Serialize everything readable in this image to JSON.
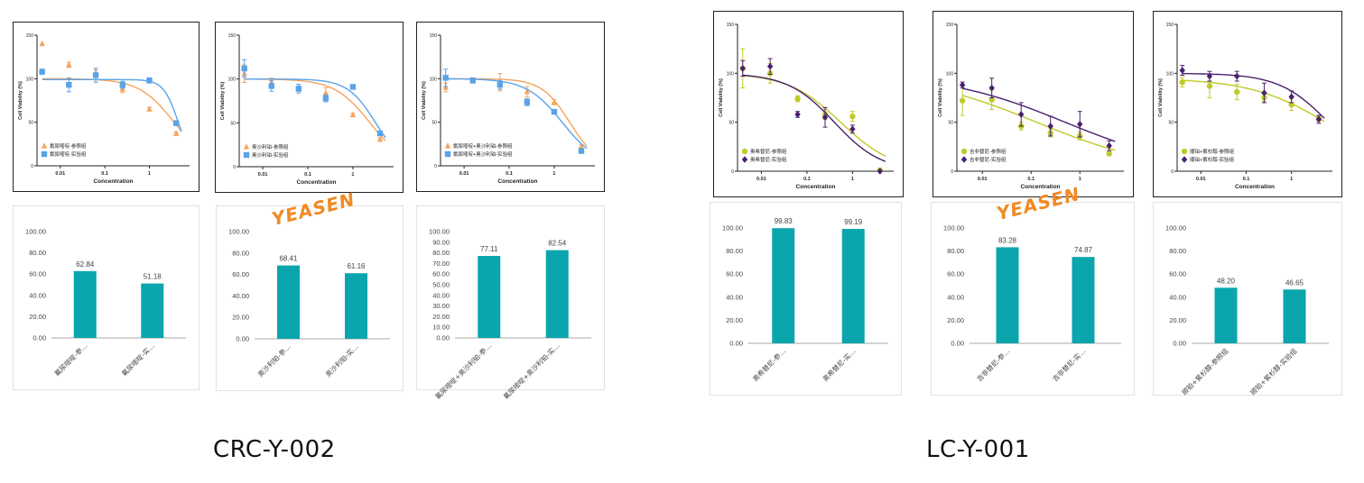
{
  "logo": "YEASEN",
  "groups": [
    "CRC-Y-002",
    "LC-Y-001"
  ],
  "dr_common": {
    "xlabel": "Concentration",
    "ylabel": "Cell Viability (%)"
  },
  "colors": {
    "orange": "#f7a35c",
    "blue": "#5aa3e8",
    "olive": "#bfca28",
    "purple": "#4b1f6f",
    "teal": "#0aa5ad"
  },
  "chart_data": [
    {
      "type": "scatter",
      "group": "CRC-Y-002",
      "xscale": "log",
      "xlim": [
        0.003,
        8
      ],
      "ylim": [
        0,
        150
      ],
      "xticks": [
        "0.01",
        "0.1",
        "1"
      ],
      "yticks": [
        "0",
        "50",
        "100",
        "150"
      ],
      "xlabel": "Concentration",
      "ylabel": "Cell Viability (%)",
      "series": [
        {
          "name": "氟尿嘧啶-参照组",
          "color": "orange",
          "marker": "triangle",
          "fit": {
            "top": 100,
            "bottom": 0,
            "ic50": 3.6,
            "hill": 1.1
          },
          "points": [
            [
              0.0039,
              140,
              0
            ],
            [
              0.0156,
              116,
              3
            ],
            [
              0.0625,
              106,
              4
            ],
            [
              0.25,
              88,
              4
            ],
            [
              1,
              65,
              2
            ],
            [
              4,
              37,
              2
            ]
          ]
        },
        {
          "name": "氟尿嘧啶-实验组",
          "color": "blue",
          "marker": "square",
          "fit": {
            "top": 99,
            "bottom": 0,
            "ic50": 4.5,
            "hill": 2.6
          },
          "points": [
            [
              0.0039,
              108,
              3
            ],
            [
              0.0156,
              93,
              8
            ],
            [
              0.0625,
              104,
              8
            ],
            [
              0.25,
              93,
              4
            ],
            [
              1,
              98,
              3
            ],
            [
              4,
              49,
              2
            ]
          ]
        }
      ]
    },
    {
      "type": "scatter",
      "group": "CRC-Y-002",
      "xscale": "log",
      "xlim": [
        0.003,
        8
      ],
      "ylim": [
        0,
        150
      ],
      "xticks": [
        "0.01",
        "0.1",
        "1"
      ],
      "yticks": [
        "0",
        "50",
        "100",
        "150"
      ],
      "xlabel": "Concentration",
      "ylabel": "Cell Viability (%)",
      "series": [
        {
          "name": "奥沙利铂-参照组",
          "color": "orange",
          "marker": "triangle",
          "fit": {
            "top": 100,
            "bottom": 0,
            "ic50": 2.4,
            "hill": 1.1
          },
          "points": [
            [
              0.0039,
              106,
              10
            ],
            [
              0.0156,
              96,
              5
            ],
            [
              0.0625,
              90,
              4
            ],
            [
              0.25,
              84,
              6
            ],
            [
              1,
              59,
              2
            ],
            [
              4,
              31,
              2
            ]
          ]
        },
        {
          "name": "奥沙利铂-实验组",
          "color": "blue",
          "marker": "square",
          "fit": {
            "top": 100,
            "bottom": 0,
            "ic50": 3.2,
            "hill": 1.4
          },
          "points": [
            [
              0.0039,
              112,
              10
            ],
            [
              0.0156,
              92,
              6
            ],
            [
              0.0625,
              89,
              5
            ],
            [
              0.25,
              78,
              4
            ],
            [
              1,
              91,
              2
            ],
            [
              4,
              38,
              2
            ]
          ]
        }
      ]
    },
    {
      "type": "scatter",
      "group": "CRC-Y-002",
      "xscale": "log",
      "xlim": [
        0.003,
        8
      ],
      "ylim": [
        0,
        150
      ],
      "xticks": [
        "0.01",
        "0.1",
        "1"
      ],
      "yticks": [
        "0",
        "50",
        "100",
        "150"
      ],
      "xlabel": "Concentration",
      "ylabel": "Cell Viability (%)",
      "series": [
        {
          "name": "氟尿嘧啶+奥沙利铂-参照组",
          "color": "orange",
          "marker": "triangle",
          "fit": {
            "top": 100,
            "bottom": 0,
            "ic50": 2.2,
            "hill": 1.4
          },
          "points": [
            [
              0.0039,
              90,
              5
            ],
            [
              0.0156,
              98,
              3
            ],
            [
              0.0625,
              96,
              10
            ],
            [
              0.25,
              85,
              6
            ],
            [
              1,
              73,
              3
            ],
            [
              4,
              22,
              2
            ]
          ]
        },
        {
          "name": "氟尿嘧啶+奥沙利铂-实验组",
          "color": "blue",
          "marker": "square",
          "fit": {
            "top": 100,
            "bottom": 0,
            "ic50": 1.5,
            "hill": 1.1
          },
          "points": [
            [
              0.0039,
              101,
              10
            ],
            [
              0.0156,
              98,
              3
            ],
            [
              0.0625,
              93,
              5
            ],
            [
              0.25,
              73,
              4
            ],
            [
              1,
              62,
              2
            ],
            [
              4,
              17,
              2
            ]
          ]
        }
      ]
    },
    {
      "type": "scatter",
      "group": "LC-Y-001",
      "xscale": "log",
      "xlim": [
        0.003,
        8
      ],
      "ylim": [
        0,
        150
      ],
      "xticks": [
        "0.01",
        "0.1",
        "1"
      ],
      "yticks": [
        "0",
        "50",
        "100",
        "150"
      ],
      "xlabel": "Concentration",
      "ylabel": "Cell Viability (%)",
      "series": [
        {
          "name": "奥希替尼-参照组",
          "color": "olive",
          "marker": "circle",
          "fit": {
            "top": 100,
            "bottom": 0,
            "ic50": 0.55,
            "hill": 0.75
          },
          "points": [
            [
              0.0039,
              105,
              20
            ],
            [
              0.0156,
              100,
              10
            ],
            [
              0.0625,
              74,
              3
            ],
            [
              0.25,
              58,
              5
            ],
            [
              1,
              56,
              5
            ],
            [
              4,
              1,
              2
            ]
          ]
        },
        {
          "name": "奥希替尼-实验组",
          "color": "purple",
          "marker": "diamond",
          "fit": {
            "top": 100,
            "bottom": 0,
            "ic50": 0.4,
            "hill": 0.85
          },
          "points": [
            [
              0.0039,
              105,
              8
            ],
            [
              0.0156,
              107,
              8
            ],
            [
              0.0625,
              58,
              3
            ],
            [
              0.25,
              55,
              10
            ],
            [
              1,
              43,
              4
            ],
            [
              4,
              0,
              0
            ]
          ]
        }
      ]
    },
    {
      "type": "scatter",
      "group": "LC-Y-001",
      "xscale": "log",
      "xlim": [
        0.003,
        8
      ],
      "ylim": [
        0,
        150
      ],
      "xticks": [
        "0.01",
        "0.1",
        "1"
      ],
      "yticks": [
        "0",
        "50",
        "100",
        "150"
      ],
      "xlabel": "Concentration",
      "ylabel": "Cell Viability (%)",
      "series": [
        {
          "name": "吉非替尼-参照组",
          "color": "olive",
          "marker": "circle",
          "fit": {
            "top": 100,
            "bottom": 0,
            "ic50": 0.13,
            "hill": 0.35
          },
          "points": [
            [
              0.0039,
              72,
              15
            ],
            [
              0.0156,
              73,
              10
            ],
            [
              0.0625,
              46,
              4
            ],
            [
              0.25,
              39,
              4
            ],
            [
              1,
              36,
              4
            ],
            [
              4,
              18,
              2
            ]
          ]
        },
        {
          "name": "吉非替尼-实验组",
          "color": "purple",
          "marker": "diamond",
          "fit": {
            "top": 100,
            "bottom": 0,
            "ic50": 0.5,
            "hill": 0.35
          },
          "points": [
            [
              0.0039,
              88,
              3
            ],
            [
              0.0156,
              85,
              10
            ],
            [
              0.0625,
              58,
              12
            ],
            [
              0.25,
              46,
              10
            ],
            [
              1,
              48,
              13
            ],
            [
              4,
              26,
              5
            ]
          ]
        }
      ]
    },
    {
      "type": "scatter",
      "group": "LC-Y-001",
      "xscale": "log",
      "xlim": [
        0.003,
        8
      ],
      "ylim": [
        0,
        150
      ],
      "xticks": [
        "0.01",
        "0.1",
        "1"
      ],
      "yticks": [
        "0",
        "50",
        "100",
        "150"
      ],
      "xlabel": "Concentration",
      "ylabel": "Cell Viability (%)",
      "series": [
        {
          "name": "顺铂+紫杉醇-参照组",
          "color": "olive",
          "marker": "circle",
          "fit": {
            "top": 95,
            "bottom": 0,
            "ic50": 7,
            "hill": 0.5
          },
          "points": [
            [
              0.0039,
              91,
              5
            ],
            [
              0.0156,
              87,
              12
            ],
            [
              0.0625,
              81,
              8
            ],
            [
              0.25,
              75,
              4
            ],
            [
              1,
              68,
              6
            ],
            [
              4,
              54,
              3
            ]
          ]
        },
        {
          "name": "顺铂+紫杉醇-实验组",
          "color": "purple",
          "marker": "diamond",
          "fit": {
            "top": 100,
            "bottom": 0,
            "ic50": 6.5,
            "hill": 0.8
          },
          "points": [
            [
              0.0039,
              103,
              5
            ],
            [
              0.0156,
              97,
              5
            ],
            [
              0.0625,
              97,
              5
            ],
            [
              0.25,
              80,
              10
            ],
            [
              1,
              76,
              6
            ],
            [
              4,
              53,
              4
            ]
          ]
        }
      ]
    },
    {
      "type": "bar",
      "group": "CRC-Y-002",
      "categories": [
        "氟尿嘧啶-参…",
        "氟尿嘧啶-实…"
      ],
      "values": [
        62.84,
        51.18
      ],
      "labels": [
        "62.84",
        "51.18"
      ],
      "ylim": [
        0,
        100
      ],
      "yticks": [
        "0.00",
        "20.00",
        "40.00",
        "60.00",
        "80.00",
        "100.00"
      ]
    },
    {
      "type": "bar",
      "group": "CRC-Y-002",
      "categories": [
        "奥沙利铂-参…",
        "奥沙利铂-实…"
      ],
      "values": [
        68.41,
        61.16
      ],
      "labels": [
        "68.41",
        "61.16"
      ],
      "ylim": [
        0,
        100
      ],
      "yticks": [
        "0.00",
        "20.00",
        "40.00",
        "60.00",
        "80.00",
        "100.00"
      ]
    },
    {
      "type": "bar",
      "group": "CRC-Y-002",
      "categories": [
        "氟尿嘧啶+奥沙利铂-参…",
        "氟尿嘧啶+奥沙利铂-实…"
      ],
      "values": [
        77.11,
        82.54
      ],
      "labels": [
        "77.11",
        "82.54"
      ],
      "ylim": [
        0,
        100
      ],
      "yticks": [
        "0.00",
        "10.00",
        "20.00",
        "30.00",
        "40.00",
        "50.00",
        "60.00",
        "70.00",
        "80.00",
        "90.00",
        "100.00"
      ]
    },
    {
      "type": "bar",
      "group": "LC-Y-001",
      "categories": [
        "奥希替尼-参…",
        "奥希替尼-实…"
      ],
      "values": [
        99.83,
        99.19
      ],
      "labels": [
        "99.83",
        "99.19"
      ],
      "ylim": [
        0,
        100
      ],
      "yticks": [
        "0.00",
        "20.00",
        "40.00",
        "60.00",
        "80.00",
        "100.00"
      ]
    },
    {
      "type": "bar",
      "group": "LC-Y-001",
      "categories": [
        "吉非替尼-参…",
        "吉非替尼-实…"
      ],
      "values": [
        83.28,
        74.87
      ],
      "labels": [
        "83.28",
        "74.87"
      ],
      "ylim": [
        0,
        100
      ],
      "yticks": [
        "0.00",
        "20.00",
        "40.00",
        "60.00",
        "80.00",
        "100.00"
      ]
    },
    {
      "type": "bar",
      "group": "LC-Y-001",
      "categories": [
        "顺铂+紫杉醇-参照组",
        "顺铂+紫杉醇-实验组"
      ],
      "values": [
        48.2,
        46.65
      ],
      "labels": [
        "48.20",
        "46.65"
      ],
      "ylim": [
        0,
        100
      ],
      "yticks": [
        "0.00",
        "20.00",
        "40.00",
        "60.00",
        "80.00",
        "100.00"
      ]
    }
  ]
}
